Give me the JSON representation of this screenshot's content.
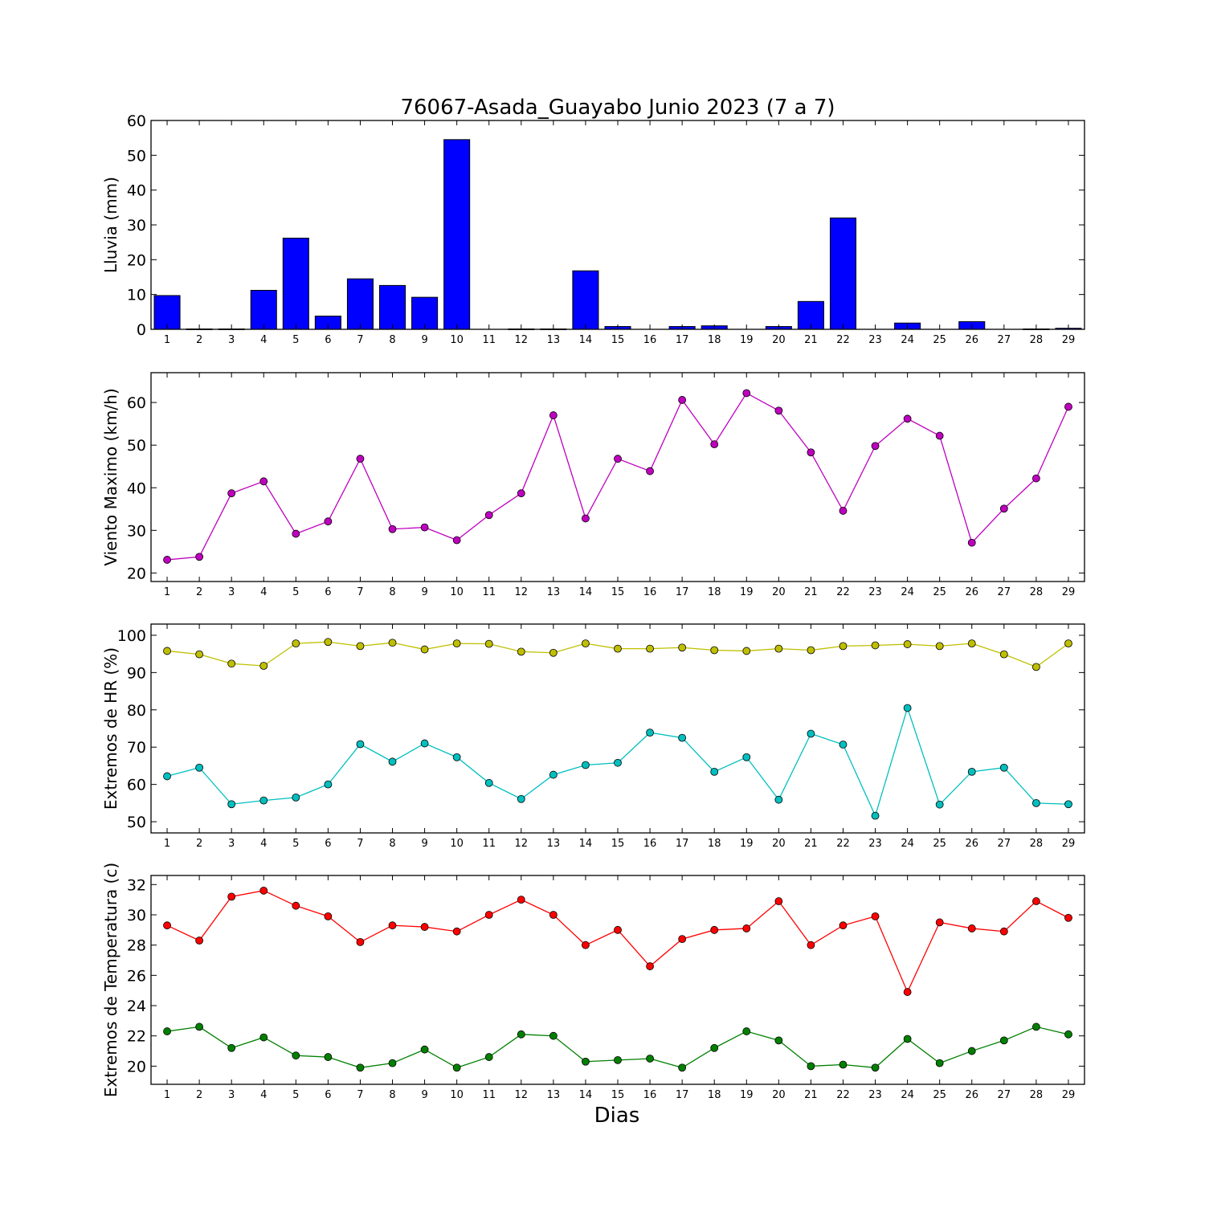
{
  "chart_data": [
    {
      "type": "bar",
      "title": "76067-Asada_Guayabo Junio 2023  (7 a 7)",
      "ylabel": "Lluvia (mm)",
      "xlabel": "",
      "x": [
        1,
        2,
        3,
        4,
        5,
        6,
        7,
        8,
        9,
        10,
        11,
        12,
        13,
        14,
        15,
        16,
        17,
        18,
        19,
        20,
        21,
        22,
        23,
        24,
        25,
        26,
        27,
        28,
        29
      ],
      "xlim": [
        0.5,
        29.5
      ],
      "ylim": [
        0,
        60
      ],
      "yticks": [
        0,
        10,
        20,
        30,
        40,
        50,
        60
      ],
      "color": "#0000ff",
      "series": [
        {
          "values": [
            9.7,
            0.1,
            0.1,
            11.2,
            26.2,
            3.8,
            14.5,
            12.6,
            9.2,
            54.5,
            0,
            0.1,
            0.1,
            16.8,
            0.8,
            0,
            0.8,
            1.0,
            0,
            0.8,
            8.0,
            32.0,
            0,
            1.8,
            0,
            2.2,
            0,
            0.1,
            0.3
          ]
        }
      ]
    },
    {
      "type": "line",
      "ylabel": "Viento Maximo (km/h)",
      "x": [
        1,
        2,
        3,
        4,
        5,
        6,
        7,
        8,
        9,
        10,
        11,
        12,
        13,
        14,
        15,
        16,
        17,
        18,
        19,
        20,
        21,
        22,
        23,
        24,
        25,
        26,
        27,
        28,
        29
      ],
      "xlim": [
        0.5,
        29.5
      ],
      "ylim": [
        18,
        67
      ],
      "yticks": [
        20,
        30,
        40,
        50,
        60
      ],
      "series": [
        {
          "color": "#bf00bf",
          "values": [
            23.1,
            23.8,
            38.7,
            41.5,
            29.2,
            32.1,
            46.8,
            30.3,
            30.7,
            27.7,
            33.6,
            38.7,
            57.0,
            32.8,
            46.8,
            43.9,
            60.6,
            50.2,
            62.2,
            58.1,
            48.3,
            34.6,
            49.8,
            56.2,
            52.2,
            27.1,
            35.1,
            42.2,
            59.0
          ]
        }
      ]
    },
    {
      "type": "line",
      "ylabel": "Extremos de HR (%)",
      "x": [
        1,
        2,
        3,
        4,
        5,
        6,
        7,
        8,
        9,
        10,
        11,
        12,
        13,
        14,
        15,
        16,
        17,
        18,
        19,
        20,
        21,
        22,
        23,
        24,
        25,
        26,
        27,
        28,
        29
      ],
      "xlim": [
        0.5,
        29.5
      ],
      "ylim": [
        47,
        103
      ],
      "yticks": [
        50,
        60,
        70,
        80,
        90,
        100
      ],
      "series": [
        {
          "color": "#bfbf00",
          "values": [
            95.8,
            94.9,
            92.4,
            91.8,
            97.8,
            98.2,
            97.1,
            98.0,
            96.2,
            97.8,
            97.7,
            95.6,
            95.3,
            97.8,
            96.4,
            96.4,
            96.7,
            96.0,
            95.8,
            96.4,
            96.0,
            97.1,
            97.3,
            97.6,
            97.1,
            97.8,
            94.9,
            91.5,
            97.8
          ]
        },
        {
          "color": "#00bfbf",
          "values": [
            62.2,
            64.5,
            54.7,
            55.7,
            56.5,
            60.0,
            70.8,
            66.1,
            71.0,
            67.3,
            60.4,
            56.1,
            62.6,
            65.2,
            65.8,
            73.9,
            72.5,
            63.4,
            67.3,
            55.9,
            73.6,
            70.7,
            51.6,
            80.5,
            54.6,
            63.4,
            64.5,
            55.0,
            54.7
          ]
        }
      ]
    },
    {
      "type": "line",
      "ylabel": "Extremos de Temperatura (c)",
      "xlabel": "Dias",
      "x": [
        1,
        2,
        3,
        4,
        5,
        6,
        7,
        8,
        9,
        10,
        11,
        12,
        13,
        14,
        15,
        16,
        17,
        18,
        19,
        20,
        21,
        22,
        23,
        24,
        25,
        26,
        27,
        28,
        29
      ],
      "xlim": [
        0.5,
        29.5
      ],
      "ylim": [
        18.8,
        32.6
      ],
      "yticks": [
        20,
        22,
        24,
        26,
        28,
        30,
        32
      ],
      "series": [
        {
          "color": "#ff0000",
          "values": [
            29.3,
            28.3,
            31.2,
            31.6,
            30.6,
            29.9,
            28.2,
            29.3,
            29.2,
            28.9,
            30.0,
            31.0,
            30.0,
            28.0,
            29.0,
            26.6,
            28.4,
            29.0,
            29.1,
            30.9,
            28.0,
            29.3,
            29.9,
            24.9,
            29.5,
            29.1,
            28.9,
            30.9,
            29.8
          ]
        },
        {
          "color": "#008000",
          "values": [
            22.3,
            22.6,
            21.2,
            21.9,
            20.7,
            20.6,
            19.9,
            20.2,
            21.1,
            19.9,
            20.6,
            22.1,
            22.0,
            20.3,
            20.4,
            20.5,
            19.9,
            21.2,
            22.3,
            21.7,
            20.0,
            20.1,
            19.9,
            21.8,
            20.2,
            21.0,
            21.7,
            22.6,
            22.1
          ]
        }
      ]
    }
  ]
}
